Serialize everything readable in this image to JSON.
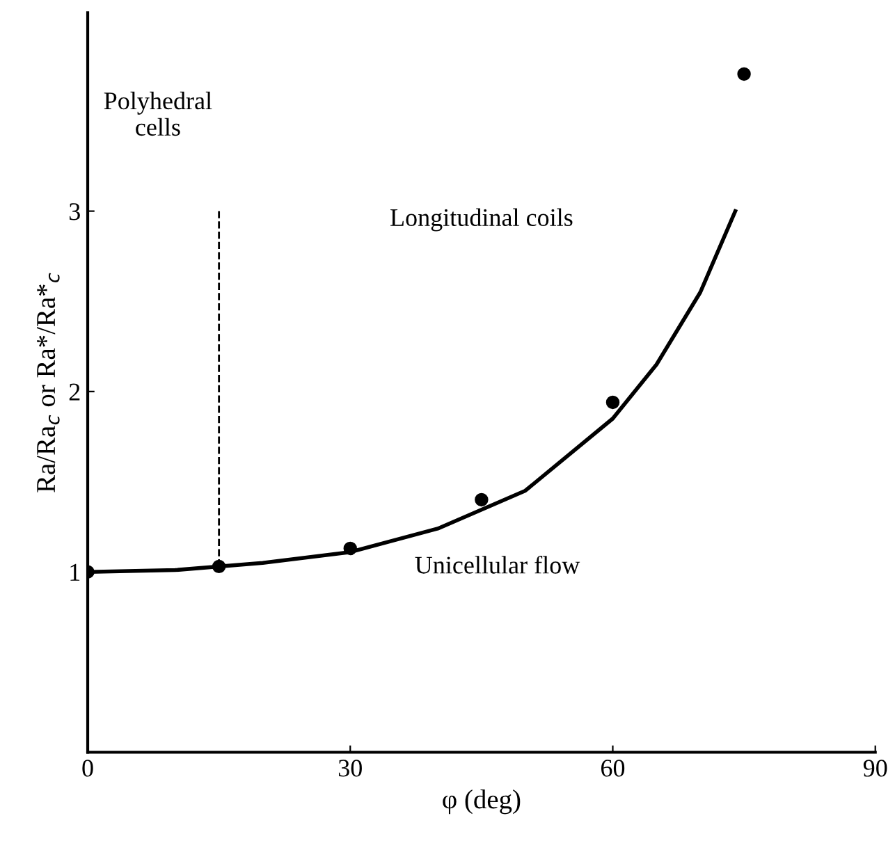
{
  "chart_data": {
    "type": "scatter",
    "xlabel": "φ (deg)",
    "ylabel": "Ra/Ra$_{c}$ or Ra*/Ra*$_{c}$",
    "xlim": [
      0,
      90
    ],
    "ylim": [
      0,
      4.1
    ],
    "xticks": [
      0,
      30,
      60,
      90
    ],
    "yticks": [
      1,
      2,
      3
    ],
    "grid": false,
    "legend": false,
    "series": [
      {
        "color": "#000000",
        "marker": "circle",
        "x": [
          0,
          15,
          30,
          45,
          60,
          75
        ],
        "values": [
          1.0,
          1.03,
          1.13,
          1.4,
          1.94,
          3.76
        ]
      },
      {
        "type": "line",
        "color": "#000000",
        "line_style": "solid",
        "x": [
          0,
          10,
          20,
          30,
          40,
          50,
          60,
          65,
          70,
          74
        ],
        "values": [
          1.0,
          1.01,
          1.05,
          1.11,
          1.24,
          1.45,
          1.85,
          2.15,
          2.55,
          3.0
        ]
      },
      {
        "type": "line",
        "color": "#000000",
        "line_style": "dashed",
        "x": [
          15,
          15
        ],
        "values": [
          1.03,
          3.0
        ]
      }
    ],
    "annotations": [
      "Polyhedral\ncells",
      "Longitudinal coils",
      "Unicellular flow"
    ]
  }
}
